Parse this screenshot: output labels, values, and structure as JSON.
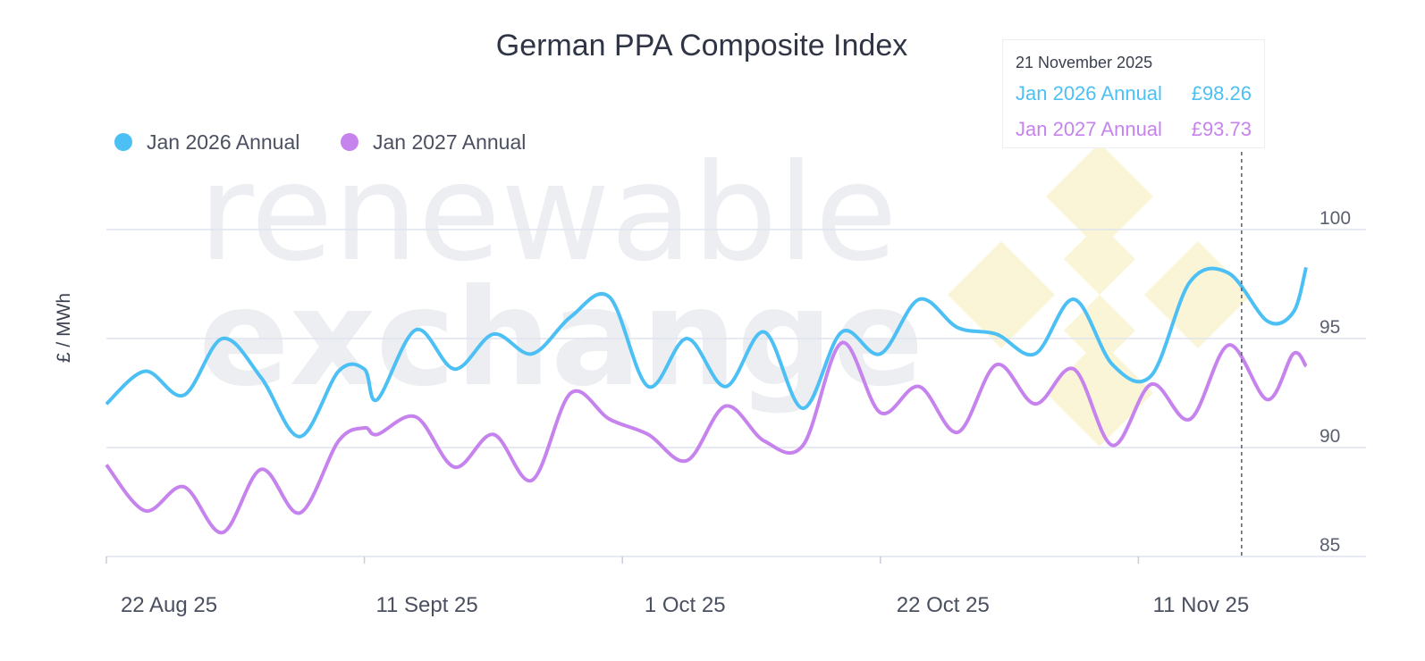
{
  "colors": {
    "series1": "#4cc0f4",
    "series2": "#c683ee",
    "grid": "#dfe3ee",
    "crosshair": "#555a66"
  },
  "watermark": {
    "line1": "renewable",
    "line2": "exchange"
  },
  "tooltip": {
    "date": "21 November 2025",
    "rows": [
      {
        "name": "Jan 2026 Annual",
        "value": "£98.26"
      },
      {
        "name": "Jan 2027 Annual",
        "value": "£93.73"
      }
    ]
  },
  "chart_data": {
    "type": "line",
    "title": "German PPA Composite Index",
    "ylabel": "£ / MWh",
    "ylim": [
      85,
      100
    ],
    "yticks": [
      85,
      90,
      95,
      100
    ],
    "x": [
      0,
      3,
      6,
      9,
      12,
      15,
      18,
      20,
      21,
      24,
      27,
      30,
      33,
      36,
      39,
      42,
      45,
      48,
      51,
      54,
      57,
      60,
      63,
      66,
      69,
      72,
      75,
      78,
      81,
      84,
      87,
      90,
      92,
      93
    ],
    "xticks": [
      {
        "x": 0,
        "label": "22 Aug 25"
      },
      {
        "x": 20,
        "label": "11 Sept 25"
      },
      {
        "x": 40,
        "label": "1 Oct 25"
      },
      {
        "x": 60,
        "label": "22 Oct 25"
      },
      {
        "x": 80,
        "label": "11 Nov 25"
      }
    ],
    "crosshair_x": 88,
    "series": [
      {
        "name": "Jan 2026 Annual",
        "values": [
          92.0,
          93.5,
          92.4,
          95.0,
          93.2,
          90.5,
          93.5,
          93.6,
          92.2,
          95.4,
          93.6,
          95.2,
          94.3,
          96.0,
          96.9,
          92.8,
          95.0,
          92.8,
          95.3,
          91.8,
          95.3,
          94.3,
          96.8,
          95.5,
          95.2,
          94.3,
          96.8,
          93.8,
          93.3,
          97.6,
          98.0,
          95.8,
          96.2,
          98.26
        ]
      },
      {
        "name": "Jan 2027 Annual",
        "values": [
          89.2,
          87.1,
          88.2,
          86.1,
          89.0,
          87.0,
          90.3,
          90.9,
          90.6,
          91.4,
          89.1,
          90.6,
          88.5,
          92.5,
          91.3,
          90.6,
          89.4,
          91.9,
          90.3,
          90.1,
          94.8,
          91.6,
          92.8,
          90.7,
          93.8,
          92.0,
          93.6,
          90.1,
          92.9,
          91.3,
          94.7,
          92.2,
          94.3,
          93.73
        ]
      }
    ]
  }
}
